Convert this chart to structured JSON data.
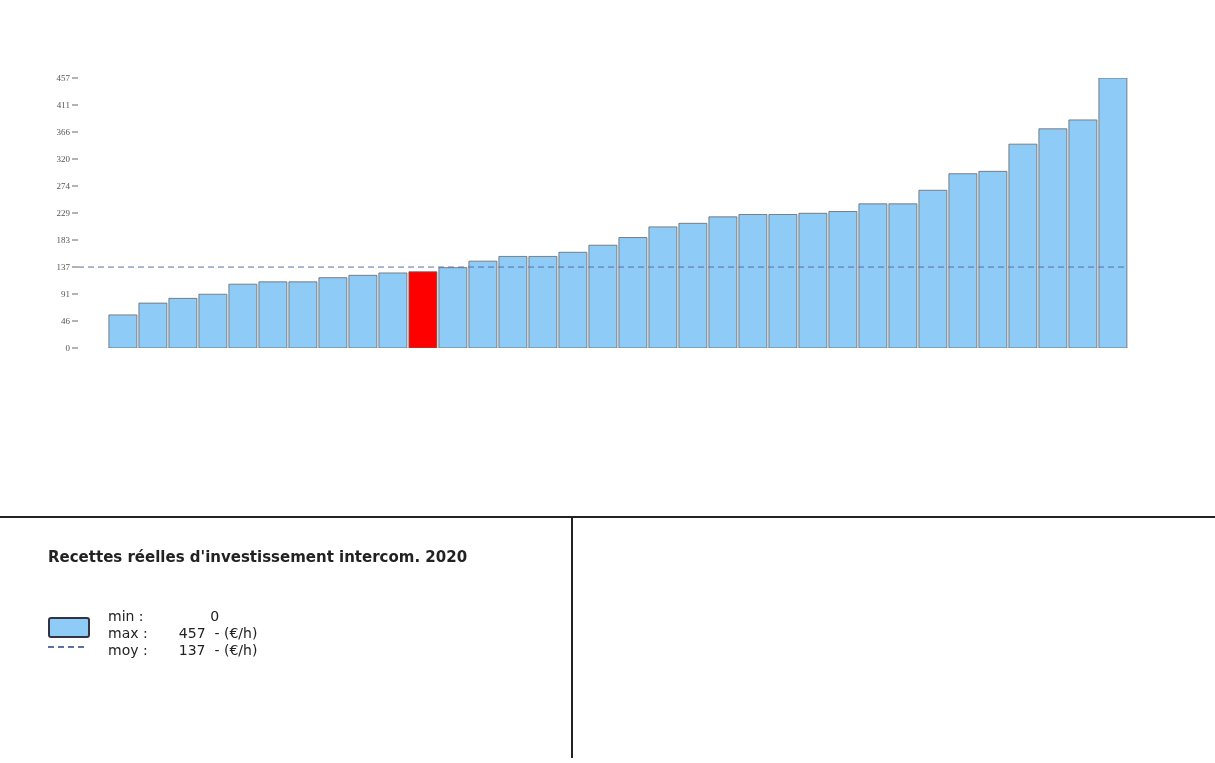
{
  "chart_data": {
    "type": "bar",
    "legend_title": "Recettes réelles d'investissement intercom. 2020",
    "categories": [
      null,
      null,
      null,
      null,
      null,
      null,
      null,
      null,
      null,
      null,
      null,
      null,
      null,
      null,
      null,
      null,
      null,
      null,
      null,
      null,
      null,
      null,
      null,
      null,
      null,
      null,
      null,
      null,
      null,
      null,
      null,
      null,
      null,
      null,
      null
    ],
    "values": [
      0,
      56,
      76,
      84,
      91,
      108,
      112,
      112,
      119,
      123,
      127,
      129,
      136,
      147,
      155,
      155,
      162,
      174,
      187,
      205,
      211,
      222,
      226,
      226,
      228,
      231,
      244,
      244,
      267,
      295,
      299,
      345,
      371,
      386,
      457
    ],
    "colors": [
      "#8ecbf7",
      "#8ecbf7",
      "#8ecbf7",
      "#8ecbf7",
      "#8ecbf7",
      "#8ecbf7",
      "#8ecbf7",
      "#8ecbf7",
      "#8ecbf7",
      "#8ecbf7",
      "#8ecbf7",
      "#ff0000",
      "#8ecbf7",
      "#8ecbf7",
      "#8ecbf7",
      "#8ecbf7",
      "#8ecbf7",
      "#8ecbf7",
      "#8ecbf7",
      "#8ecbf7",
      "#8ecbf7",
      "#8ecbf7",
      "#8ecbf7",
      "#8ecbf7",
      "#8ecbf7",
      "#8ecbf7",
      "#8ecbf7",
      "#8ecbf7",
      "#8ecbf7",
      "#8ecbf7",
      "#8ecbf7",
      "#8ecbf7",
      "#8ecbf7",
      "#8ecbf7",
      "#8ecbf7"
    ],
    "ylim": [
      0,
      457
    ],
    "yticks": [
      0,
      {
        "value": 45.7,
        "label": "46"
      },
      {
        "value": 91.4,
        "label": "91"
      },
      {
        "value": 137.1,
        "label": "137"
      },
      {
        "value": 182.8,
        "label": "183"
      },
      {
        "value": 228.5,
        "label": "229"
      },
      {
        "value": 274.2,
        "label": "274"
      },
      {
        "value": 319.9,
        "label": "320"
      },
      {
        "value": 365.6,
        "label": "366"
      },
      {
        "value": 411.3,
        "label": "411"
      },
      {
        "value": 457,
        "label": "457"
      }
    ],
    "ref_lines": [
      {
        "axis": "y",
        "value": 137,
        "label": "moy :       137  - (€/h)",
        "color": "#5b6fa8",
        "line_style": "dashed"
      }
    ],
    "annotations": [
      "min :               0",
      "max :       457  - (€/h)"
    ],
    "legend": "bottom left"
  }
}
